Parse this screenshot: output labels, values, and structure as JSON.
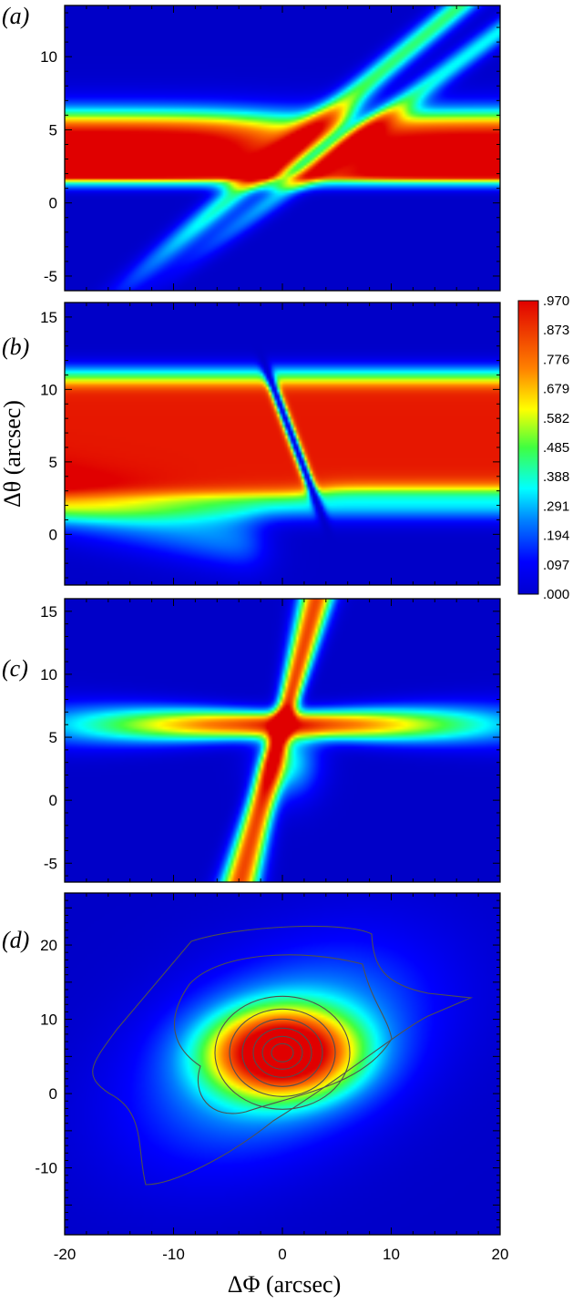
{
  "chart_data": {
    "type": "heatmap",
    "xlabel": "ΔΦ  (arcsec)",
    "ylabel": "Δθ  (arcsec)",
    "xlim": [
      -20,
      20
    ],
    "x_ticks": [
      "-20",
      "-10",
      "0",
      "10",
      "20"
    ],
    "colormap": "jet",
    "colorbar": {
      "range": [
        0.0,
        0.97
      ],
      "labels": [
        ".970",
        ".873",
        ".776",
        ".679",
        ".582",
        ".485",
        ".388",
        ".291",
        ".194",
        ".097",
        ".000"
      ]
    },
    "panels": [
      {
        "tag": "(a)",
        "ylim": [
          -6,
          13.5
        ],
        "y_ticks": [
          {
            "v": 10,
            "t": "10"
          },
          {
            "v": 5,
            "t": "5"
          },
          {
            "v": 0,
            "t": "0"
          },
          {
            "v": -5,
            "t": "-5"
          }
        ],
        "contour_lines": false
      },
      {
        "tag": "(b)",
        "ylim": [
          -3.5,
          16
        ],
        "y_ticks": [
          {
            "v": 15,
            "t": "15"
          },
          {
            "v": 10,
            "t": "10"
          },
          {
            "v": 5,
            "t": "5"
          },
          {
            "v": 0,
            "t": "0"
          }
        ],
        "contour_lines": false
      },
      {
        "tag": "(c)",
        "ylim": [
          -6.5,
          16
        ],
        "y_ticks": [
          {
            "v": 15,
            "t": "15"
          },
          {
            "v": 10,
            "t": "10"
          },
          {
            "v": 5,
            "t": "5"
          },
          {
            "v": 0,
            "t": "0"
          },
          {
            "v": -5,
            "t": "-5"
          }
        ],
        "contour_lines": false
      },
      {
        "tag": "(d)",
        "ylim": [
          -19,
          27
        ],
        "y_ticks": [
          {
            "v": 20,
            "t": "20"
          },
          {
            "v": 10,
            "t": "10"
          },
          {
            "v": 0,
            "t": "0"
          },
          {
            "v": -10,
            "t": "-10"
          }
        ],
        "contour_lines": true,
        "peak": {
          "x": 0,
          "y": 5.5
        }
      }
    ]
  }
}
